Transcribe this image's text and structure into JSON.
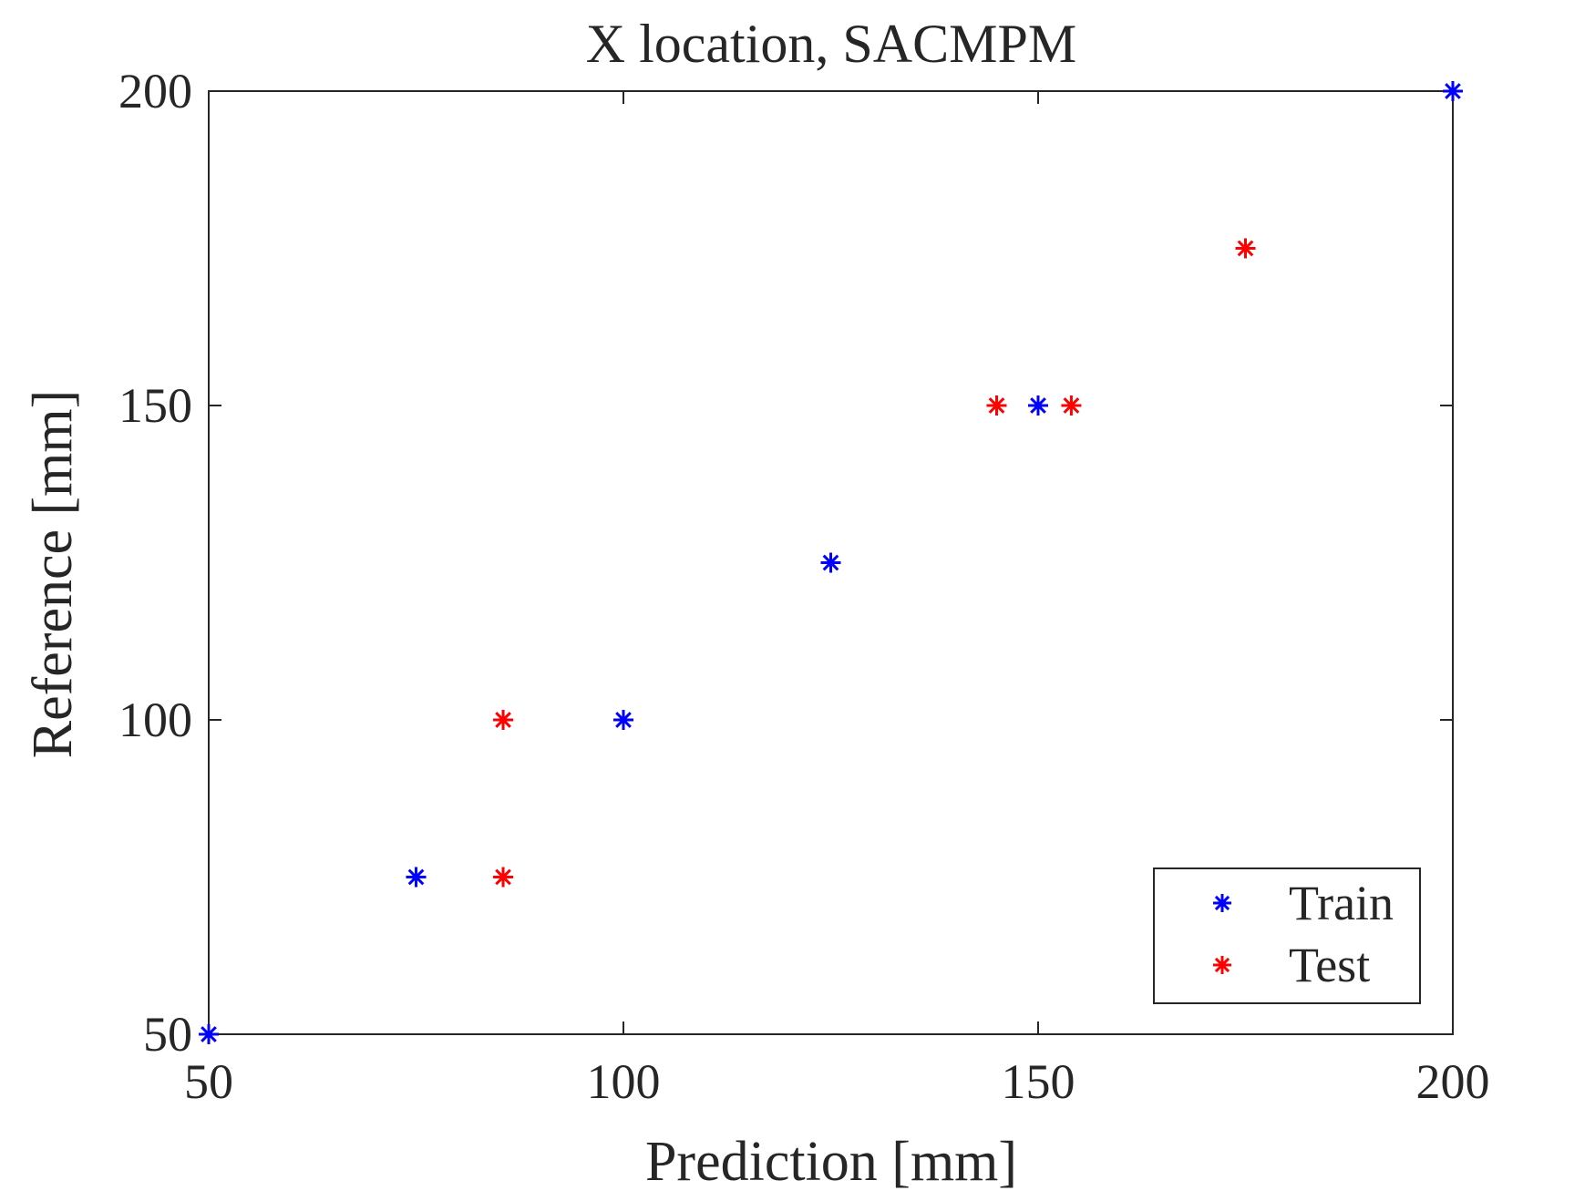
{
  "chart_data": {
    "type": "scatter",
    "title": "X location, SACMPM",
    "xlabel": "Prediction [mm]",
    "ylabel": "Reference [mm]",
    "xlim": [
      50,
      200
    ],
    "ylim": [
      50,
      200
    ],
    "xticks": [
      50,
      100,
      150,
      200
    ],
    "yticks": [
      50,
      100,
      150,
      200
    ],
    "xtick_labels": [
      "50",
      "100",
      "150",
      "200"
    ],
    "ytick_labels": [
      "50",
      "100",
      "150",
      "200"
    ],
    "grid": false,
    "marker": "asterisk",
    "legend_position": "bottom-right",
    "series": [
      {
        "name": "Train",
        "color": "#0000ff",
        "points": [
          {
            "x": 50,
            "y": 50
          },
          {
            "x": 75,
            "y": 75
          },
          {
            "x": 100,
            "y": 100
          },
          {
            "x": 125,
            "y": 125
          },
          {
            "x": 150,
            "y": 150
          },
          {
            "x": 200,
            "y": 200
          }
        ]
      },
      {
        "name": "Test",
        "color": "#ff0000",
        "points": [
          {
            "x": 85.5,
            "y": 75
          },
          {
            "x": 85.5,
            "y": 100
          },
          {
            "x": 145,
            "y": 150
          },
          {
            "x": 154,
            "y": 150
          },
          {
            "x": 175,
            "y": 175
          }
        ]
      }
    ]
  }
}
